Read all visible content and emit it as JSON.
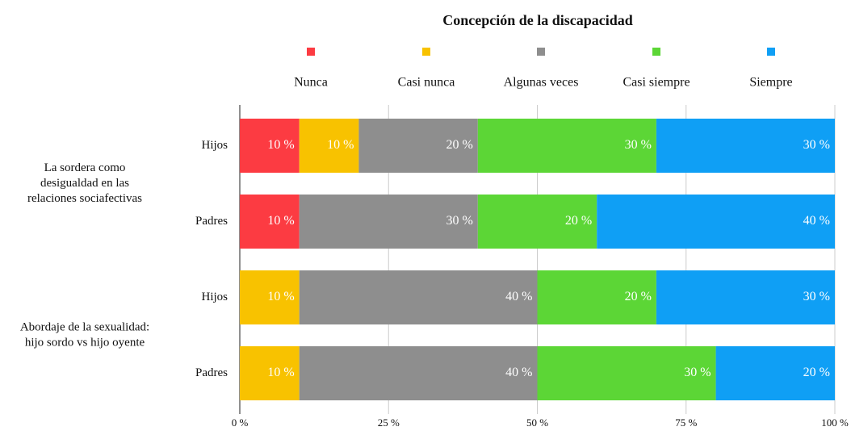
{
  "chart_data": {
    "type": "stacked-bar-horizontal",
    "title": "Concepción de la discapacidad",
    "categories": [
      "Hijos",
      "Padres",
      "Hijos",
      "Padres"
    ],
    "groups": [
      [
        "La sordera como",
        "desigualdad en las",
        "relaciones sociafectivas"
      ],
      [
        "Abordaje de la sexualidad:",
        "hijo sordo vs hijo oyente"
      ]
    ],
    "series": [
      {
        "name": "Nunca",
        "color": "#fc3b42",
        "values": [
          10,
          10,
          0,
          0
        ],
        "value_labels": [
          "10 %",
          "10 %",
          null,
          null
        ]
      },
      {
        "name": "Casi nunca",
        "color": "#f8c200",
        "values": [
          10,
          0,
          10,
          10
        ],
        "value_labels": [
          "10 %",
          null,
          "10 %",
          "10 %"
        ]
      },
      {
        "name": "Algunas veces",
        "color": "#8e8e8e",
        "values": [
          20,
          30,
          40,
          40
        ],
        "value_labels": [
          "20 %",
          "30 %",
          "40 %",
          "40 %"
        ]
      },
      {
        "name": "Casi siempre",
        "color": "#5cd636",
        "values": [
          30,
          20,
          20,
          30
        ],
        "value_labels": [
          "30 %",
          "20 %",
          "20 %",
          "30 %"
        ]
      },
      {
        "name": "Siempre",
        "color": "#0f9ff5",
        "values": [
          30,
          40,
          30,
          20
        ],
        "value_labels": [
          "30 %",
          "40 %",
          "30 %",
          "20 %"
        ]
      }
    ],
    "xlim": [
      0,
      100
    ],
    "xticks": [
      {
        "value": 0,
        "label": "0 %"
      },
      {
        "value": 25,
        "label": "25 %"
      },
      {
        "value": 50,
        "label": "50 %"
      },
      {
        "value": 75,
        "label": "75 %"
      },
      {
        "value": 100,
        "label": "100 %"
      }
    ],
    "grid": true,
    "legend": "top"
  }
}
